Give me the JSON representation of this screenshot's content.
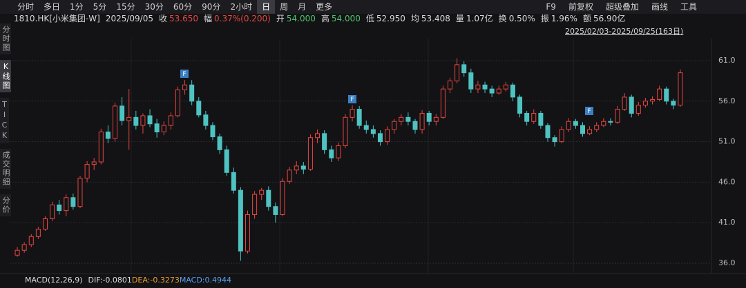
{
  "toolbar": {
    "periods": [
      "分时",
      "多日",
      "1分",
      "5分",
      "15分",
      "30分",
      "60分",
      "90分",
      "2小时",
      "日",
      "周",
      "月",
      "更多"
    ],
    "tools": [
      "F9",
      "前复权",
      "超级叠加",
      "画线",
      "工具"
    ]
  },
  "sidebar": [
    "分时图",
    "K线图",
    "TICK",
    "成交明细",
    "分价"
  ],
  "quote": {
    "code": "1810.HK[小米集团-W]",
    "date": "2025/09/05",
    "fields": [
      {
        "label": "收",
        "value": "53.650"
      },
      {
        "label": "幅",
        "value": "0.37%(0.200)"
      },
      {
        "label": "开",
        "value": "54.000"
      },
      {
        "label": "高",
        "value": "54.000"
      },
      {
        "label": "低",
        "value": "52.950"
      },
      {
        "label": "均",
        "value": "53.408"
      },
      {
        "label": "量",
        "value": "1.07亿"
      },
      {
        "label": "换",
        "value": "0.50%"
      },
      {
        "label": "振",
        "value": "1.96%"
      },
      {
        "label": "额",
        "value": "56.90亿"
      }
    ]
  },
  "chart_data": {
    "type": "candlestick",
    "range": "2025/02/03-2025/09/25(163日)",
    "up_color": "#e8463e",
    "down_color": "#4ec3c2",
    "grid": true,
    "ylim": [
      34.9,
      63.55
    ],
    "yticks": [
      {
        "value": 36,
        "label": "36.0"
      },
      {
        "value": 41,
        "label": "41.0"
      },
      {
        "value": 46,
        "label": "46.0"
      },
      {
        "value": 51,
        "label": "51.0"
      },
      {
        "value": 56,
        "label": "56.0"
      },
      {
        "value": 61,
        "label": "61.0"
      }
    ],
    "markers": [
      "F",
      "F",
      "F"
    ],
    "open": [
      37.0,
      37.6,
      38.3,
      39.3,
      40.2,
      41.5,
      43.2,
      42.5,
      44.1,
      43.0,
      46.5,
      48.2,
      48.5,
      52.2,
      51.4,
      55.4,
      53.6,
      54.0,
      53.0,
      54.2,
      53.2,
      52.2,
      53.0,
      54.2,
      57.4,
      58.0,
      56.0,
      54.3,
      53.0,
      51.6,
      50.0,
      47.2,
      45.0,
      37.5,
      42.0,
      44.5,
      45.0,
      43.0,
      42.0,
      46.1,
      47.5,
      48.0,
      47.6,
      51.5,
      52.0,
      50.0,
      49.0,
      50.5,
      54.0,
      55.0,
      53.0,
      52.5,
      52.0,
      51.0,
      52.5,
      53.5,
      54.0,
      53.5,
      52.5,
      54.5,
      53.5,
      54.0,
      57.5,
      58.5,
      60.5,
      59.5,
      57.5,
      58.0,
      57.5,
      57.0,
      57.5,
      58.0,
      56.5,
      54.5,
      53.5,
      54.5,
      53.0,
      51.5,
      51.0,
      52.5,
      53.5,
      53.0,
      52.0,
      52.5,
      53.0,
      53.5,
      53.4,
      55.0,
      56.5,
      54.5,
      55.5,
      56.0,
      56.2,
      57.5,
      56.0,
      55.5
    ],
    "high": [
      38.0,
      38.6,
      39.6,
      40.5,
      41.8,
      43.6,
      43.8,
      44.5,
      44.6,
      46.8,
      48.6,
      49.0,
      52.6,
      53.0,
      55.8,
      56.5,
      57.5,
      54.8,
      54.5,
      55.0,
      53.8,
      53.5,
      54.6,
      57.8,
      58.6,
      58.6,
      56.5,
      54.8,
      53.4,
      52.0,
      50.5,
      47.8,
      45.4,
      42.5,
      44.9,
      45.3,
      45.5,
      43.5,
      46.5,
      47.9,
      48.6,
      48.5,
      51.9,
      52.5,
      52.4,
      50.5,
      50.9,
      54.4,
      55.5,
      55.4,
      53.6,
      53.0,
      52.4,
      52.9,
      53.8,
      54.4,
      54.6,
      53.8,
      54.9,
      54.8,
      54.4,
      57.9,
      58.9,
      61.3,
      60.9,
      60.0,
      58.5,
      58.4,
      57.9,
      57.9,
      58.4,
      58.3,
      56.8,
      54.8,
      55.0,
      54.8,
      53.3,
      51.8,
      52.9,
      53.9,
      53.8,
      53.4,
      52.9,
      53.4,
      53.9,
      53.9,
      55.4,
      57.0,
      56.8,
      55.9,
      56.4,
      56.6,
      57.9,
      57.8,
      56.3,
      59.9
    ],
    "low": [
      36.8,
      37.3,
      38.0,
      39.0,
      40.0,
      41.2,
      42.0,
      41.8,
      42.6,
      42.8,
      46.0,
      47.5,
      48.2,
      50.8,
      51.0,
      53.0,
      50.0,
      52.5,
      52.0,
      52.8,
      51.5,
      51.8,
      52.5,
      54.0,
      56.8,
      55.5,
      54.0,
      52.5,
      51.2,
      49.5,
      46.8,
      44.6,
      36.3,
      37.2,
      41.5,
      43.8,
      42.5,
      41.0,
      41.8,
      45.8,
      47.0,
      47.0,
      47.4,
      50.8,
      49.5,
      48.5,
      48.6,
      50.2,
      53.5,
      52.6,
      52.0,
      51.5,
      50.5,
      50.6,
      52.0,
      53.0,
      53.0,
      52.0,
      52.0,
      53.0,
      53.0,
      53.8,
      57.0,
      58.2,
      59.0,
      57.0,
      57.0,
      57.0,
      56.5,
      56.8,
      57.2,
      56.0,
      54.0,
      53.0,
      53.2,
      52.6,
      51.0,
      50.4,
      50.8,
      52.2,
      52.6,
      51.6,
      51.8,
      52.2,
      52.8,
      53.0,
      53.2,
      54.8,
      54.0,
      54.2,
      55.2,
      55.6,
      56.0,
      55.6,
      55.0,
      55.3
    ],
    "close": [
      37.6,
      38.3,
      39.3,
      40.2,
      41.5,
      43.2,
      42.5,
      44.1,
      43.0,
      46.5,
      48.2,
      48.5,
      52.2,
      51.4,
      55.4,
      53.6,
      54.0,
      53.0,
      54.2,
      53.2,
      52.2,
      53.0,
      54.2,
      57.4,
      58.0,
      56.0,
      54.3,
      53.0,
      51.6,
      50.0,
      47.2,
      45.0,
      37.5,
      42.0,
      44.5,
      45.0,
      43.0,
      42.0,
      46.1,
      47.5,
      48.0,
      47.6,
      51.5,
      52.0,
      50.0,
      49.0,
      50.5,
      54.0,
      55.0,
      53.0,
      52.5,
      52.0,
      51.0,
      52.5,
      53.5,
      54.0,
      53.5,
      52.5,
      54.5,
      53.5,
      54.0,
      57.5,
      58.5,
      60.5,
      59.5,
      57.5,
      58.0,
      57.5,
      57.0,
      57.5,
      58.0,
      56.5,
      54.5,
      53.5,
      54.5,
      53.0,
      51.5,
      51.0,
      52.5,
      53.5,
      53.0,
      52.0,
      52.5,
      53.0,
      53.5,
      53.4,
      55.0,
      56.5,
      54.5,
      55.5,
      56.0,
      56.2,
      57.5,
      56.0,
      55.5,
      59.5
    ],
    "indicator": {
      "name": "MACD(12,26,9)",
      "dif": "DIF:-0.0801",
      "dea": "DEA:-0.3273",
      "macd": "MACD:0.4944"
    }
  }
}
